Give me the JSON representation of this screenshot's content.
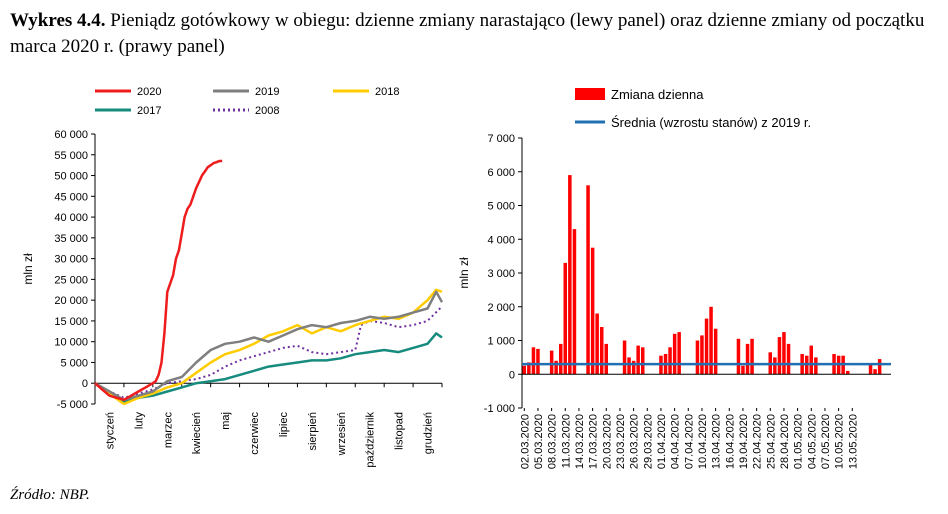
{
  "caption": {
    "label": "Wykres 4.4.",
    "text": " Pieniądz gotówkowy w obiegu: dzienne zmiany narastająco (lewy panel) oraz dzienne zmiany od początku marca 2020 r. (prawy panel)"
  },
  "source": "Źródło: NBP.",
  "chart_data": [
    {
      "type": "line",
      "panel": "left",
      "ylabel": "mln zł",
      "ylim": [
        -5000,
        60000
      ],
      "yticks": [
        -5000,
        0,
        5000,
        10000,
        15000,
        20000,
        25000,
        30000,
        35000,
        40000,
        45000,
        50000,
        55000,
        60000
      ],
      "ytick_labels": [
        "-5 000",
        "0",
        "5 000",
        "10 000",
        "15 000",
        "20 000",
        "25 000",
        "30 000",
        "35 000",
        "40 000",
        "45 000",
        "50 000",
        "55 000",
        "60 000"
      ],
      "xlim": [
        0,
        12
      ],
      "categories": [
        "styczeń",
        "luty",
        "marzec",
        "kwiecień",
        "maj",
        "czerwiec",
        "lipiec",
        "sierpień",
        "wrzesień",
        "październik",
        "listopad",
        "grudzień"
      ],
      "legend_position": "top",
      "series": [
        {
          "name": "2020",
          "color": "#ee1c1c",
          "dash": "solid",
          "x": [
            0,
            0.25,
            0.5,
            0.75,
            1,
            1.25,
            1.5,
            1.75,
            2,
            2.1,
            2.2,
            2.3,
            2.4,
            2.5,
            2.6,
            2.7,
            2.8,
            2.9,
            3,
            3.1,
            3.2,
            3.3,
            3.4,
            3.5,
            3.6,
            3.7,
            3.8,
            3.9,
            4,
            4.1,
            4.2,
            4.3,
            4.4
          ],
          "y": [
            0,
            -1500,
            -3000,
            -3500,
            -4000,
            -3000,
            -2000,
            -1000,
            0,
            500,
            2000,
            5000,
            12000,
            22000,
            24000,
            26000,
            30000,
            32000,
            36000,
            40000,
            42000,
            43000,
            45000,
            47000,
            48500,
            50000,
            51000,
            52000,
            52500,
            53000,
            53200,
            53500,
            53500
          ]
        },
        {
          "name": "2019",
          "color": "#7f7f7f",
          "dash": "solid",
          "x": [
            0,
            0.5,
            1,
            1.5,
            2,
            2.5,
            3,
            3.5,
            4,
            4.5,
            5,
            5.5,
            6,
            6.5,
            7,
            7.5,
            8,
            8.5,
            9,
            9.5,
            10,
            10.5,
            11,
            11.5,
            11.8,
            12
          ],
          "y": [
            0,
            -2000,
            -4000,
            -3000,
            -2000,
            500,
            1500,
            5000,
            8000,
            9500,
            10000,
            11000,
            10000,
            11500,
            13000,
            14000,
            13500,
            14500,
            15000,
            16000,
            15500,
            16000,
            17000,
            18000,
            22000,
            19500
          ]
        },
        {
          "name": "2018",
          "color": "#ffcc00",
          "dash": "solid",
          "x": [
            0,
            0.5,
            1,
            1.5,
            2,
            2.5,
            3,
            3.5,
            4,
            4.5,
            5,
            5.5,
            6,
            6.5,
            7,
            7.5,
            8,
            8.5,
            9,
            9.5,
            10,
            10.5,
            11,
            11.5,
            11.8,
            12
          ],
          "y": [
            0,
            -2500,
            -5000,
            -3500,
            -2500,
            -1000,
            0,
            2500,
            5000,
            7000,
            8000,
            9500,
            11500,
            12500,
            14000,
            12000,
            13500,
            12500,
            14000,
            15000,
            16000,
            15500,
            17000,
            20000,
            22500,
            22000
          ]
        },
        {
          "name": "2017",
          "color": "#168b7e",
          "dash": "solid",
          "x": [
            0,
            0.5,
            1,
            1.5,
            2,
            2.5,
            3,
            3.5,
            4,
            4.5,
            5,
            5.5,
            6,
            6.5,
            7,
            7.5,
            8,
            8.5,
            9,
            9.5,
            10,
            10.5,
            11,
            11.5,
            11.8,
            12
          ],
          "y": [
            0,
            -2500,
            -4500,
            -3500,
            -3000,
            -2000,
            -1000,
            0,
            500,
            1000,
            2000,
            3000,
            4000,
            4500,
            5000,
            5500,
            5500,
            6000,
            7000,
            7500,
            8000,
            7500,
            8500,
            9500,
            12000,
            11000
          ]
        },
        {
          "name": "2008",
          "color": "#7030a0",
          "dash": "dotted",
          "x": [
            0,
            0.5,
            1,
            1.5,
            2,
            2.5,
            3,
            3.5,
            4,
            4.5,
            5,
            5.5,
            6,
            6.5,
            7,
            7.5,
            8,
            8.5,
            9,
            9.2,
            9.5,
            10,
            10.5,
            11,
            11.5,
            12
          ],
          "y": [
            0,
            -2000,
            -3500,
            -2500,
            -1500,
            0,
            500,
            1000,
            2000,
            4000,
            5500,
            6500,
            7500,
            8500,
            9000,
            7500,
            7000,
            7500,
            8000,
            14000,
            15000,
            14500,
            13500,
            14000,
            15000,
            18500
          ]
        }
      ]
    },
    {
      "type": "bar",
      "panel": "right",
      "ylabel": "mln zł",
      "ylim": [
        -1000,
        7000
      ],
      "yticks": [
        -1000,
        0,
        1000,
        2000,
        3000,
        4000,
        5000,
        6000,
        7000
      ],
      "ytick_labels": [
        "-1 000",
        "0",
        "1 000",
        "2 000",
        "3 000",
        "4 000",
        "5 000",
        "6 000",
        "7 000"
      ],
      "x_tick_labels": [
        "02.03.2020",
        "05.03.2020",
        "08.03.2020",
        "11.03.2020",
        "14.03.2020",
        "17.03.2020",
        "20.03.2020",
        "23.03.2020",
        "26.03.2020",
        "29.03.2020",
        "01.04.2020",
        "04.04.2020",
        "07.04.2020",
        "10.04.2020",
        "13.04.2020",
        "16.04.2020",
        "19.04.2020",
        "22.04.2020",
        "25.04.2020",
        "28.04.2020",
        "01.05.2020",
        "04.05.2020",
        "07.05.2020",
        "10.05.2020",
        "13.05.2020"
      ],
      "legend_position": "top-left",
      "series": [
        {
          "name": "Zmiana dzienna",
          "color": "#ff0000",
          "values": [
            250,
            350,
            800,
            750,
            0,
            0,
            700,
            400,
            900,
            3300,
            5900,
            4300,
            0,
            0,
            5600,
            3750,
            1800,
            1400,
            900,
            0,
            0,
            0,
            1000,
            500,
            400,
            850,
            800,
            0,
            0,
            0,
            550,
            600,
            800,
            1200,
            1250,
            0,
            0,
            0,
            1000,
            1150,
            1650,
            2000,
            1350,
            0,
            0,
            0,
            0,
            1050,
            250,
            900,
            1050,
            0,
            0,
            0,
            650,
            500,
            1100,
            1250,
            900,
            0,
            0,
            600,
            550,
            850,
            500,
            0,
            0,
            0,
            600,
            550,
            550,
            100,
            0,
            0,
            0,
            0,
            300,
            150,
            450,
            0,
            0
          ]
        },
        {
          "name": "Średnia (wzrostu stanów) z 2019 r.",
          "color": "#1f6fb2",
          "value": 300
        }
      ]
    }
  ]
}
